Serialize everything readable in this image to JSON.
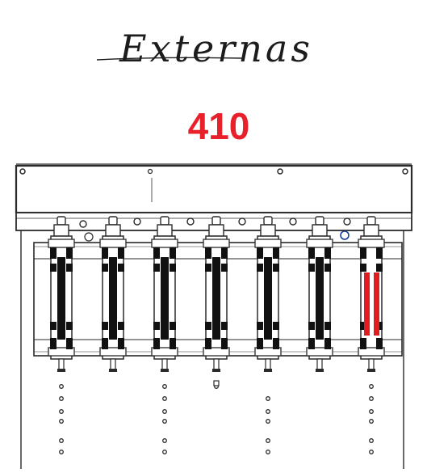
{
  "title": "Externas",
  "part_number": "410",
  "colors": {
    "title_ink": "#1c1c1c",
    "part_number": "#e8202a",
    "line": "#2a2a2a",
    "band": "#111111",
    "highlight": "#e11b22",
    "background": "#ffffff"
  },
  "drawing": {
    "cylinder_count": 7,
    "highlighted_cylinder": 7,
    "highlight_bars": 2
  }
}
